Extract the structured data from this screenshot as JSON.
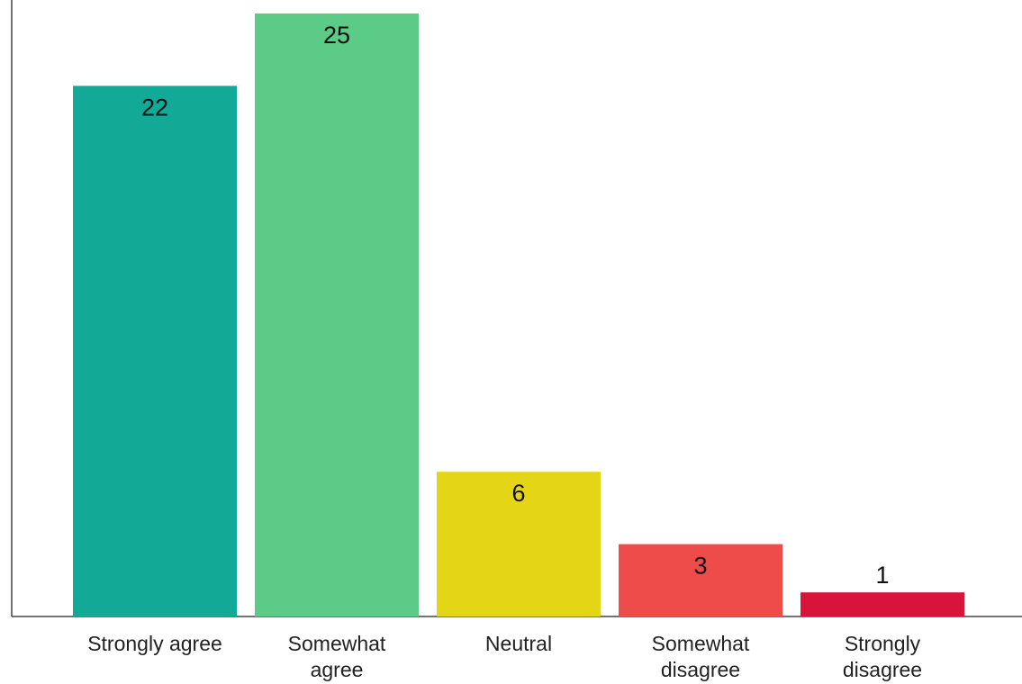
{
  "chart_data": {
    "type": "bar",
    "title": "",
    "xlabel": "",
    "ylabel": "",
    "categories": [
      [
        "Strongly agree"
      ],
      [
        "Somewhat",
        "agree"
      ],
      [
        "Neutral"
      ],
      [
        "Somewhat",
        "disagree"
      ],
      [
        "Strongly",
        "disagree"
      ]
    ],
    "values": [
      22,
      25,
      6,
      3,
      1
    ],
    "colors": [
      "#12aa96",
      "#5ccb88",
      "#e4d616",
      "#ee4b4b",
      "#d8143a"
    ],
    "ylim": [
      0,
      25
    ],
    "grid": false,
    "legend": "none"
  }
}
